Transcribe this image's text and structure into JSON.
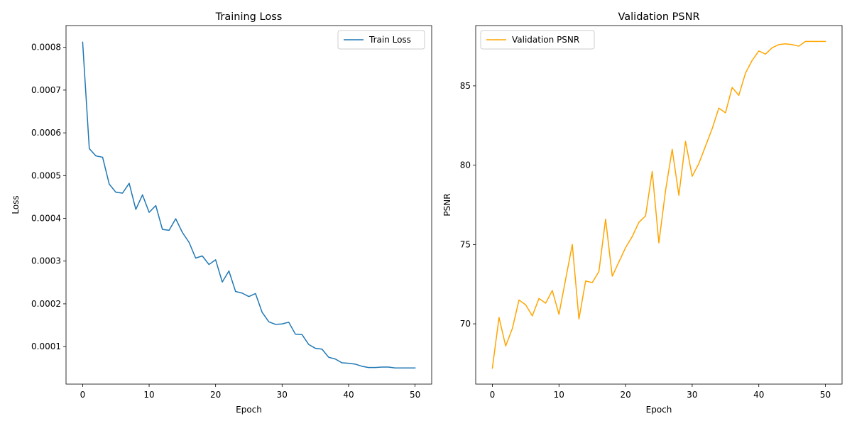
{
  "chart_data": [
    {
      "type": "line",
      "title": "Training Loss",
      "xlabel": "Epoch",
      "ylabel": "Loss",
      "xlim": [
        -2.5,
        52.5
      ],
      "ylim": [
        1.22e-05,
        0.000851
      ],
      "xticks": [
        0,
        10,
        20,
        30,
        40,
        50
      ],
      "xtick_labels": [
        "0",
        "10",
        "20",
        "30",
        "40",
        "50"
      ],
      "yticks": [
        0.0001,
        0.0002,
        0.0003,
        0.0004,
        0.0005,
        0.0006,
        0.0007,
        0.0008
      ],
      "ytick_labels": [
        "0.0001",
        "0.0002",
        "0.0003",
        "0.0004",
        "0.0005",
        "0.0006",
        "0.0007",
        "0.0008"
      ],
      "grid": false,
      "legend": "top-right",
      "series": [
        {
          "name": "Train Loss",
          "color": "#1f77b4",
          "x": [
            0,
            1,
            2,
            3,
            4,
            5,
            6,
            7,
            8,
            9,
            10,
            11,
            12,
            13,
            14,
            15,
            16,
            17,
            18,
            19,
            20,
            21,
            22,
            23,
            24,
            25,
            26,
            27,
            28,
            29,
            30,
            31,
            32,
            33,
            34,
            35,
            36,
            37,
            38,
            39,
            40,
            41,
            42,
            43,
            44,
            45,
            46,
            47,
            48,
            49,
            50
          ],
          "values": [
            0.000812,
            0.000563,
            0.000546,
            0.000543,
            0.00048,
            0.000461,
            0.000459,
            0.000482,
            0.000421,
            0.000455,
            0.000414,
            0.00043,
            0.000374,
            0.000372,
            0.000399,
            0.000367,
            0.000344,
            0.000307,
            0.000312,
            0.000292,
            0.000303,
            0.000251,
            0.000277,
            0.000229,
            0.000225,
            0.000217,
            0.000224,
            0.00018,
            0.000158,
            0.000152,
            0.000153,
            0.000157,
            0.000129,
            0.000128,
            0.000105,
            9.6e-05,
            9.4e-05,
            7.5e-05,
            7.1e-05,
            6.2e-05,
            6.1e-05,
            5.9e-05,
            5.4e-05,
            5.1e-05,
            5.1e-05,
            5.2e-05,
            5.2e-05,
            5e-05,
            5e-05,
            5e-05,
            5e-05
          ]
        }
      ]
    },
    {
      "type": "line",
      "title": "Validation PSNR",
      "xlabel": "Epoch",
      "ylabel": "PSNR",
      "xlim": [
        -2.5,
        52.5
      ],
      "ylim": [
        66.2,
        88.8
      ],
      "xticks": [
        0,
        10,
        20,
        30,
        40,
        50
      ],
      "xtick_labels": [
        "0",
        "10",
        "20",
        "30",
        "40",
        "50"
      ],
      "yticks": [
        70,
        75,
        80,
        85
      ],
      "ytick_labels": [
        "70",
        "75",
        "80",
        "85"
      ],
      "grid": false,
      "legend": "top-left",
      "series": [
        {
          "name": "Validation PSNR",
          "color": "#ffa500",
          "x": [
            0,
            1,
            2,
            3,
            4,
            5,
            6,
            7,
            8,
            9,
            10,
            11,
            12,
            13,
            14,
            15,
            16,
            17,
            18,
            19,
            20,
            21,
            22,
            23,
            24,
            25,
            26,
            27,
            28,
            29,
            30,
            31,
            32,
            33,
            34,
            35,
            36,
            37,
            38,
            39,
            40,
            41,
            42,
            43,
            44,
            45,
            46,
            47,
            48,
            49,
            50
          ],
          "values": [
            67.2,
            70.4,
            68.6,
            69.7,
            71.5,
            71.2,
            70.5,
            71.6,
            71.3,
            72.1,
            70.6,
            72.8,
            75.0,
            70.3,
            72.7,
            72.6,
            73.3,
            76.6,
            73.0,
            73.9,
            74.8,
            75.5,
            76.4,
            76.8,
            79.6,
            75.1,
            78.4,
            81.0,
            78.1,
            81.5,
            79.3,
            80.1,
            81.2,
            82.3,
            83.6,
            83.3,
            84.9,
            84.4,
            85.8,
            86.6,
            87.2,
            87.0,
            87.4,
            87.6,
            87.65,
            87.6,
            87.5,
            87.8,
            87.8,
            87.8,
            87.8
          ]
        }
      ]
    }
  ]
}
